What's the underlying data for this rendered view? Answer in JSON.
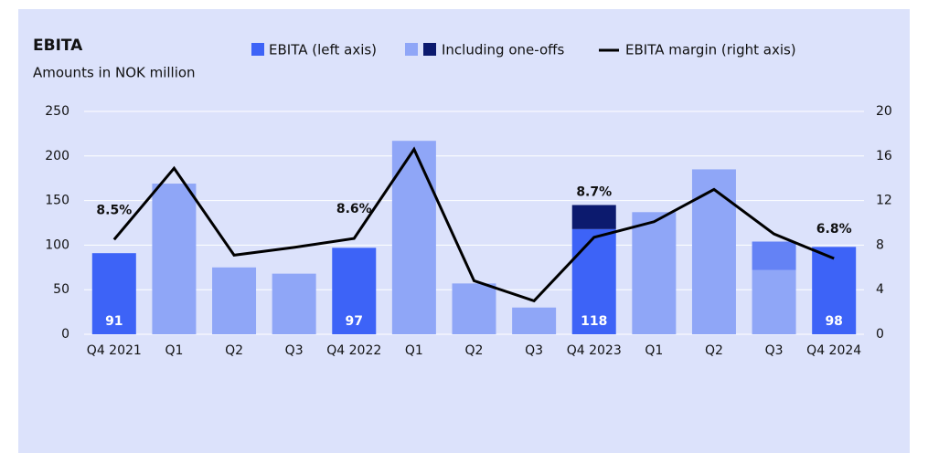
{
  "chart_data": {
    "type": "bar_line",
    "title": "EBITA",
    "subtitle": "Amounts in NOK million",
    "categories": [
      "Q4 2021",
      "Q1",
      "Q2",
      "Q3",
      "Q4 2022",
      "Q1",
      "Q2",
      "Q3",
      "Q4 2023",
      "Q1",
      "Q2",
      "Q3",
      "Q4 2024"
    ],
    "series": [
      {
        "name": "EBITA (left axis)",
        "color": "#3d63f7",
        "values": [
          91,
          null,
          null,
          null,
          97,
          null,
          null,
          null,
          118,
          null,
          null,
          null,
          98
        ]
      },
      {
        "name": "Including one-offs",
        "color": "#8fa6f7",
        "values": [
          null,
          169,
          75,
          68,
          null,
          217,
          57,
          30,
          null,
          137,
          185,
          72,
          null
        ]
      },
      {
        "colors": [
          null,
          null,
          null,
          null,
          null,
          null,
          null,
          null,
          "#0c1a6e",
          null,
          null,
          "#6482f5",
          null
        ],
        "values": [
          null,
          null,
          null,
          null,
          null,
          null,
          null,
          null,
          27,
          null,
          null,
          32,
          null
        ]
      },
      {
        "name": "EBITA margin (right axis)",
        "color": "#000000",
        "axis": "y2",
        "type": "line",
        "values": [
          8.5,
          14.9,
          7.1,
          7.8,
          8.6,
          16.6,
          4.8,
          3.0,
          8.7,
          10.1,
          13.0,
          9.0,
          6.8
        ],
        "value_labels": [
          "8.5%",
          null,
          null,
          null,
          "8.6%",
          null,
          null,
          null,
          "8.7%",
          null,
          null,
          null,
          "6.8%"
        ]
      }
    ],
    "ylim": [
      0,
      250
    ],
    "yticks": [
      0,
      50,
      100,
      150,
      200,
      250
    ],
    "y2lim": [
      0,
      20
    ],
    "y2ticks": [
      0,
      4,
      8,
      12,
      16,
      20
    ],
    "grid": true
  }
}
